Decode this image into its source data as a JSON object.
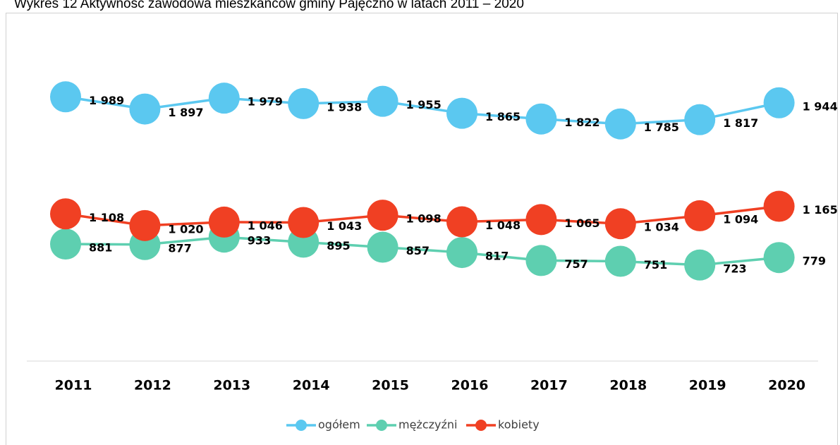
{
  "chart_data": {
    "type": "line",
    "title": "Wykres 12 Aktywność zawodowa mieszkańców gminy Pajęczno w latach 2011 – 2020",
    "categories": [
      "2011",
      "2012",
      "2013",
      "2014",
      "2015",
      "2016",
      "2017",
      "2018",
      "2019",
      "2020"
    ],
    "series": [
      {
        "name": "ogółem",
        "color": "#5bc8f0",
        "values": [
          1989,
          1897,
          1979,
          1938,
          1955,
          1865,
          1822,
          1785,
          1817,
          1944
        ],
        "value_labels": [
          "1 989",
          "1 897",
          "1 979",
          "1 938",
          "1 955",
          "1 865",
          "1 822",
          "1 785",
          "1 817",
          "1 944"
        ]
      },
      {
        "name": "mężczyźni",
        "color": "#5ecfb0",
        "values": [
          881,
          877,
          933,
          895,
          857,
          817,
          757,
          751,
          723,
          779
        ]
      },
      {
        "name": "kobiety",
        "color": "#f04023",
        "values": [
          1108,
          1020,
          1046,
          1043,
          1098,
          1048,
          1065,
          1034,
          1094,
          1165
        ],
        "value_labels": [
          "1 108",
          "1 020",
          "1 046",
          "1 043",
          "1 098",
          "1 048",
          "1 065",
          "1 034",
          "1 094",
          "1 165"
        ]
      }
    ],
    "ylim": [
      0,
      2500
    ],
    "legend": "bottom"
  }
}
